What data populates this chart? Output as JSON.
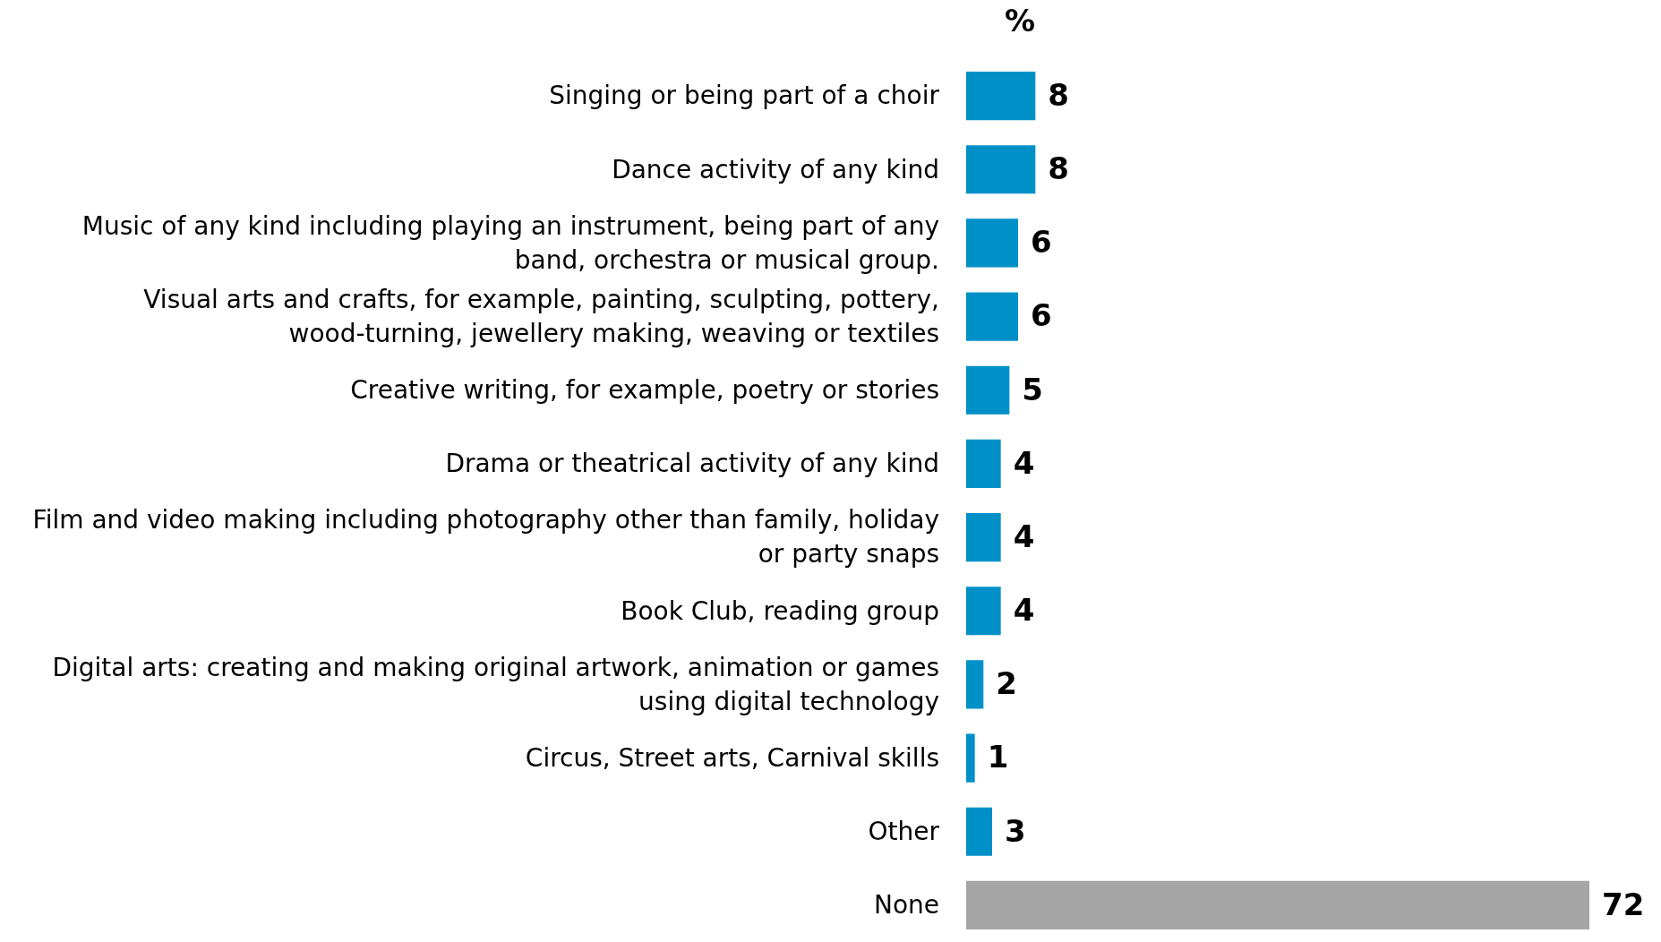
{
  "chart_data": {
    "type": "bar",
    "orientation": "horizontal",
    "title": "%",
    "categories": [
      "Singing or being part of a choir",
      "Dance activity of any kind",
      "Music of any kind including playing an instrument, being part of any band, orchestra or musical group.",
      "Visual arts and crafts, for example, painting, sculpting, pottery, wood-turning, jewellery making, weaving or textiles",
      "Creative writing, for example, poetry or stories",
      "Drama or theatrical activity of any kind",
      "Film and video making including photography other than family, holiday or party snaps",
      "Book Club, reading group",
      "Digital arts: creating and making original artwork, animation or games using digital technology",
      "Circus, Street arts, Carnival skills",
      "Other",
      "None"
    ],
    "values": [
      8,
      8,
      6,
      6,
      5,
      4,
      4,
      4,
      2,
      1,
      3,
      72
    ],
    "colors": [
      "#0090c8",
      "#0090c8",
      "#0090c8",
      "#0090c8",
      "#0090c8",
      "#0090c8",
      "#0090c8",
      "#0090c8",
      "#0090c8",
      "#0090c8",
      "#0090c8",
      "#a5a5a5"
    ],
    "data_labels": true,
    "legend": false
  }
}
